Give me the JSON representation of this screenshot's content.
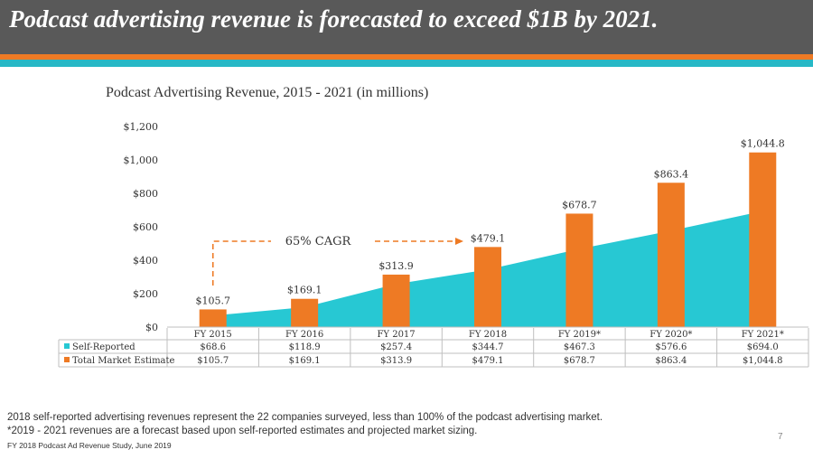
{
  "header": {
    "title": "Podcast advertising revenue is forecasted to exceed $1B by 2021."
  },
  "colors": {
    "banner": "#595959",
    "orange": "#EE7A24",
    "teal": "#27C8D3",
    "stripe_teal": "#27B8C6"
  },
  "annotation": {
    "cagr": "65% CAGR"
  },
  "chart_data": {
    "type": "bar",
    "title": "Podcast Advertising Revenue, 2015 - 2021 (in millions)",
    "categories": [
      "FY 2015",
      "FY 2016",
      "FY 2017",
      "FY 2018",
      "FY 2019*",
      "FY 2020*",
      "FY 2021*"
    ],
    "ylim": [
      0,
      1200
    ],
    "yticks": [
      0,
      200,
      400,
      600,
      800,
      1000,
      1200
    ],
    "ytick_labels": [
      "$0",
      "$200",
      "$400",
      "$600",
      "$800",
      "$1,000",
      "$1,200"
    ],
    "series": [
      {
        "name": "Self-Reported",
        "type": "area",
        "values": [
          68.6,
          118.9,
          257.4,
          344.7,
          467.3,
          576.6,
          694.0
        ],
        "labels": [
          "$68.6",
          "$118.9",
          "$257.4",
          "$344.7",
          "$467.3",
          "$576.6",
          "$694.0"
        ]
      },
      {
        "name": "Total Market Estimate",
        "type": "bar",
        "values": [
          105.7,
          169.1,
          313.9,
          479.1,
          678.7,
          863.4,
          1044.8
        ],
        "labels": [
          "$105.7",
          "$169.1",
          "$313.9",
          "$479.1",
          "$678.7",
          "$863.4",
          "$1,044.8"
        ]
      }
    ]
  },
  "footnotes": {
    "line1": "2018 self-reported advertising revenues represent the 22 companies surveyed, less than 100% of the podcast advertising market.",
    "line2": "*2019 - 2021 revenues are a forecast based upon self-reported estimates and projected market sizing.",
    "source": "FY 2018 Podcast Ad Revenue Study, June 2019"
  },
  "page": {
    "number": "7"
  }
}
